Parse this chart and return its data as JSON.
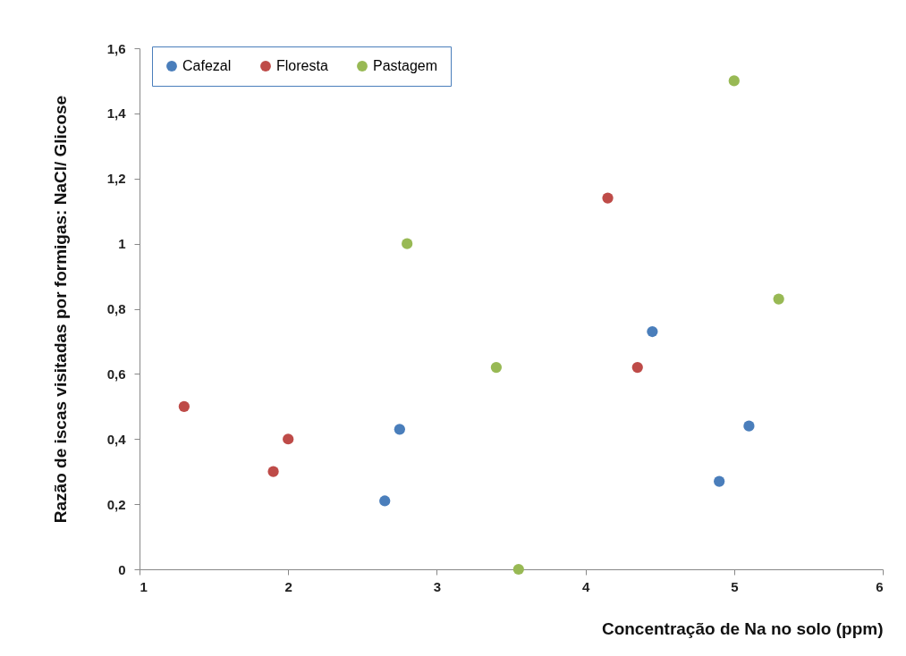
{
  "chart_data": {
    "type": "scatter",
    "xlabel": "Concentração de Na no solo (ppm)",
    "ylabel": "Razão de iscas visitadas por formigas: NaCl/ Glicose",
    "xlim": [
      1,
      6
    ],
    "xticks": [
      1,
      2,
      3,
      4,
      5,
      6
    ],
    "ylim": [
      0,
      1.6
    ],
    "yticks": [
      0,
      {
        "value": 0.2,
        "label": "0,2"
      },
      {
        "value": 0.4,
        "label": "0,4"
      },
      {
        "value": 0.6,
        "label": "0,6"
      },
      {
        "value": 0.8,
        "label": "0,8"
      },
      1,
      {
        "value": 1.2,
        "label": "1,2"
      },
      {
        "value": 1.4,
        "label": "1,4"
      },
      {
        "value": 1.6,
        "label": "1,6"
      }
    ],
    "grid": false,
    "legend": "top left",
    "marker": "circle",
    "series": [
      {
        "name": "Cafezal",
        "color": "#4a7ebb",
        "x": [
          2.65,
          2.75,
          4.45,
          4.9,
          5.1
        ],
        "values": [
          0.21,
          0.43,
          0.73,
          0.27,
          0.44
        ]
      },
      {
        "name": "Floresta",
        "color": "#be4b48",
        "x": [
          1.3,
          1.9,
          2.0,
          4.15,
          4.35
        ],
        "values": [
          0.5,
          0.3,
          0.4,
          1.14,
          0.62
        ]
      },
      {
        "name": "Pastagem",
        "color": "#98b954",
        "x": [
          2.8,
          3.4,
          3.55,
          5.0,
          5.3
        ],
        "values": [
          1.0,
          0.62,
          0,
          1.5,
          0.83
        ]
      }
    ]
  }
}
